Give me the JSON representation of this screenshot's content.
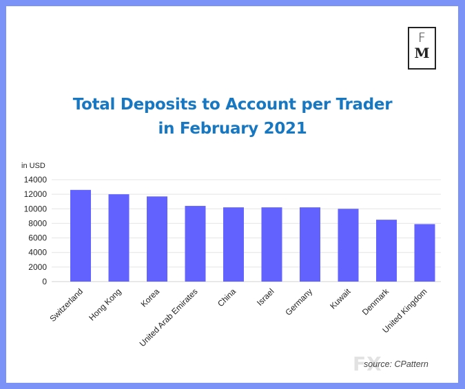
{
  "logo": {
    "line1": "F",
    "line2": "M"
  },
  "title_line1": "Total Deposits to Account per Trader",
  "title_line2": "in February 2021",
  "source": "source: CPattern",
  "watermark": "FX",
  "colors": {
    "bar": "#6262ff",
    "title": "#1877c1",
    "frame": "#7b93f7"
  },
  "chart_data": {
    "type": "bar",
    "title": "Total Deposits to Account per Trader in February 2021",
    "ylabel": "in USD",
    "xlabel": "",
    "categories": [
      "Switzerland",
      "Hong Kong",
      "Korea",
      "United Arab Emirates",
      "China",
      "Israel",
      "Germany",
      "Kuwait",
      "Denmark",
      "United Kingdom"
    ],
    "values": [
      12600,
      12000,
      11700,
      10400,
      10200,
      10200,
      10200,
      10000,
      8500,
      7900
    ],
    "ylim": [
      0,
      14000
    ],
    "yticks": [
      0,
      2000,
      4000,
      6000,
      8000,
      10000,
      12000,
      14000
    ],
    "grid": true,
    "legend": "none"
  }
}
